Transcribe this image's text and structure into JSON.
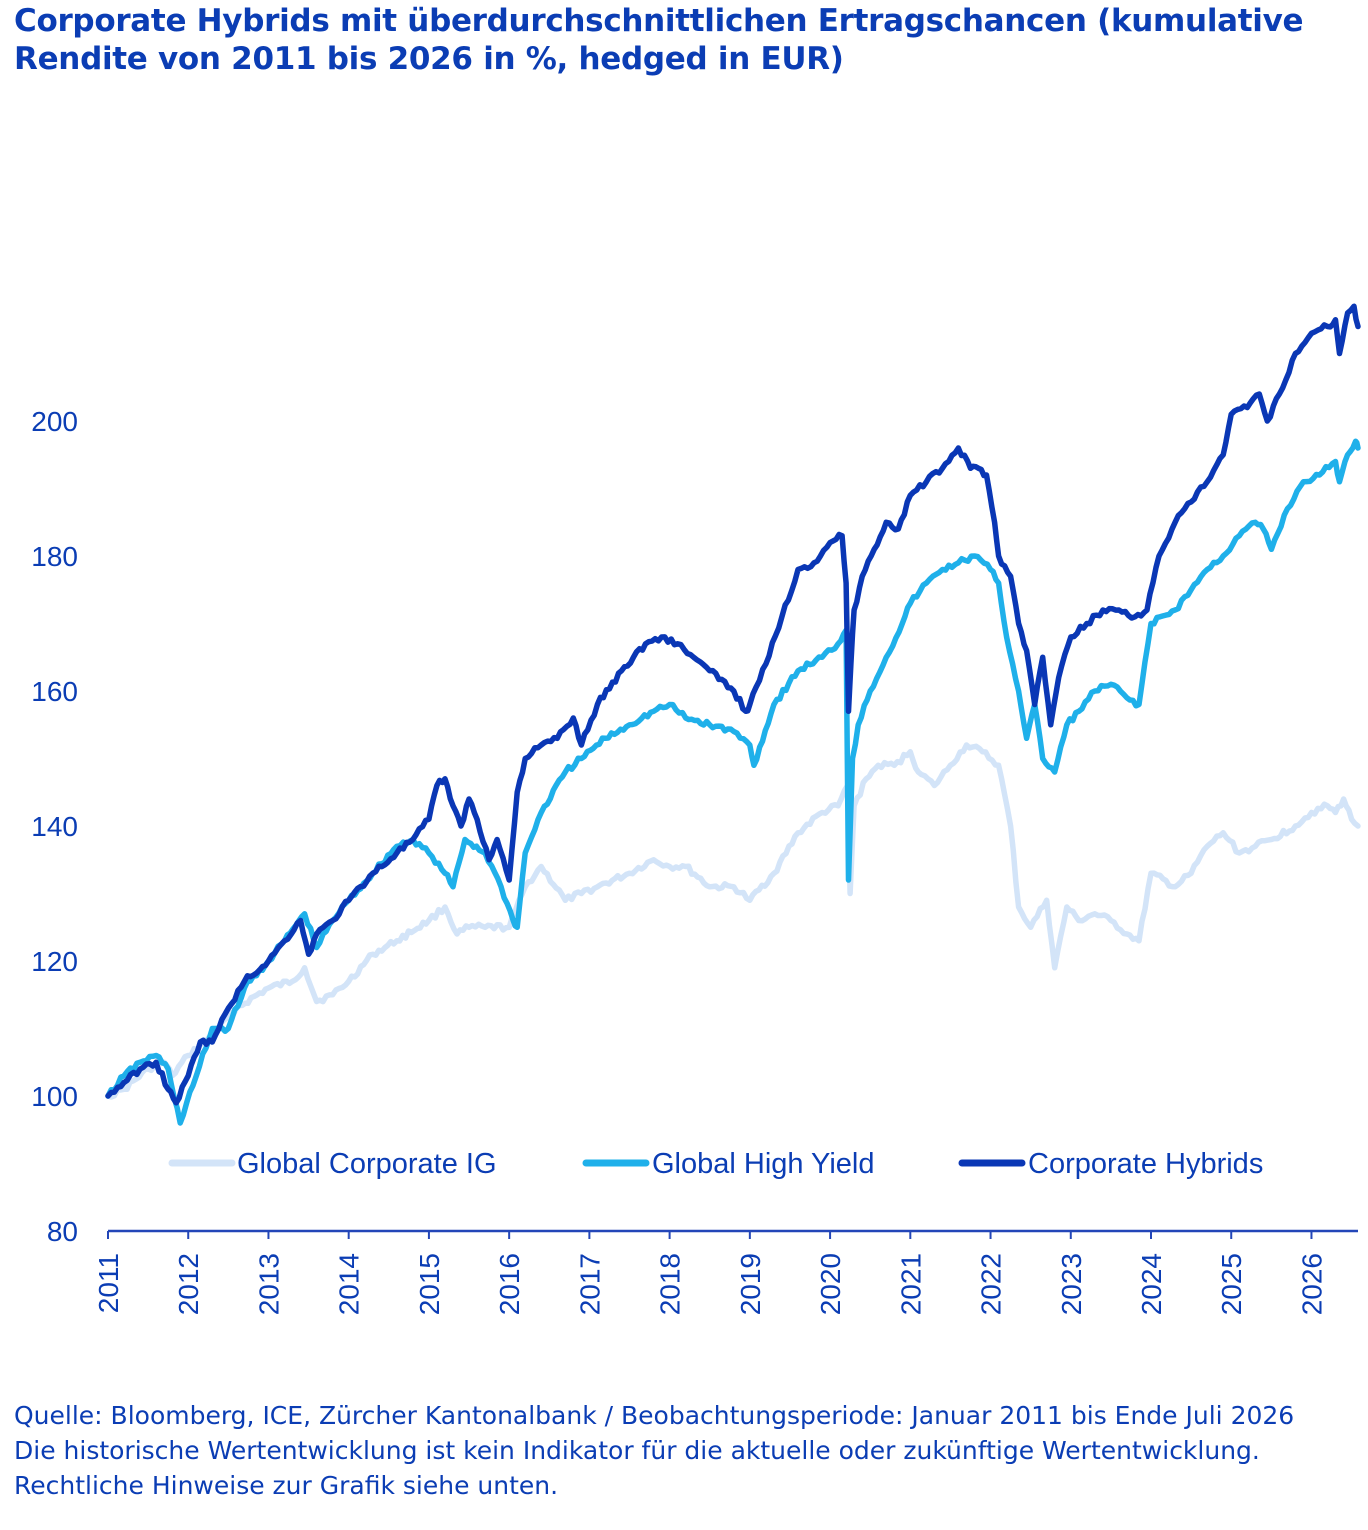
{
  "title": "Corporate Hybrids mit überdurchschnittlichen Ertragschancen (kumulative Rendite von 2011 bis 2026 in %, hedged in EUR)",
  "source": "Quelle: Bloomberg, ICE, Zürcher Kantonalbank / Beobachtungsperiode: Januar 2011 bis Ende Juli 2026 Die historische Wertentwicklung ist kein Indikator für die aktuelle oder zukünftige Wertentwicklung. Rechtliche Hinweise zur Grafik siehe unten.",
  "colors": {
    "text": "#0b3db4",
    "axis": "#2346b8"
  },
  "chart_data": {
    "type": "line",
    "title": "Corporate Hybrids mit überdurchschnittlichen Ertragschancen (kumulative Rendite von 2011 bis 2026 in %, hedged in EUR)",
    "xlabel": "",
    "ylabel": "",
    "xlim": [
      2011.0,
      2026.58
    ],
    "ylim": [
      80,
      220
    ],
    "y_ticks": [
      80,
      100,
      120,
      140,
      160,
      180,
      200
    ],
    "x_ticks": [
      "2011",
      "2012",
      "2013",
      "2014",
      "2015",
      "2016",
      "2017",
      "2018",
      "2019",
      "2020",
      "2021",
      "2022",
      "2023",
      "2024",
      "2025",
      "2026"
    ],
    "grid": false,
    "legend_position": "bottom",
    "series": [
      {
        "name": "Global Corporate IG",
        "color": "#d3e4f8",
        "x": [
          2011.0,
          2011.2,
          2011.5,
          2011.7,
          2011.8,
          2012.0,
          2012.3,
          2012.6,
          2013.0,
          2013.3,
          2013.45,
          2013.6,
          2013.8,
          2014.0,
          2014.3,
          2014.6,
          2015.0,
          2015.2,
          2015.35,
          2015.5,
          2015.7,
          2016.0,
          2016.2,
          2016.4,
          2016.7,
          2016.9,
          2017.1,
          2017.5,
          2017.8,
          2018.0,
          2018.2,
          2018.5,
          2018.8,
          2019.0,
          2019.3,
          2019.6,
          2019.9,
          2020.1,
          2020.22,
          2020.25,
          2020.3,
          2020.45,
          2020.6,
          2020.8,
          2021.0,
          2021.1,
          2021.3,
          2021.5,
          2021.7,
          2021.9,
          2022.1,
          2022.25,
          2022.35,
          2022.5,
          2022.7,
          2022.8,
          2022.95,
          2023.1,
          2023.3,
          2023.5,
          2023.7,
          2023.85,
          2024.0,
          2024.3,
          2024.5,
          2024.7,
          2024.9,
          2025.1,
          2025.3,
          2025.5,
          2025.8,
          2026.0,
          2026.2,
          2026.3,
          2026.4,
          2026.5,
          2026.58
        ],
        "values": [
          100,
          101,
          104,
          105,
          103,
          106,
          109,
          113,
          116,
          117,
          119,
          114,
          115,
          117,
          121,
          123,
          126,
          128,
          124,
          125,
          125,
          125,
          131,
          134,
          129,
          130,
          131,
          133,
          135,
          134,
          134,
          131,
          131,
          129,
          133,
          139,
          142,
          143,
          146,
          130,
          143,
          147,
          149,
          149,
          151,
          148,
          146,
          149,
          152,
          151,
          149,
          140,
          128,
          125,
          129,
          119,
          128,
          126,
          127,
          126,
          124,
          123,
          133,
          131,
          133,
          137,
          139,
          136,
          137,
          138,
          140,
          142,
          143,
          142,
          144,
          141,
          140
        ]
      },
      {
        "name": "Global High Yield",
        "color": "#1fb0ea",
        "x": [
          2011.0,
          2011.2,
          2011.4,
          2011.6,
          2011.75,
          2011.9,
          2012.1,
          2012.3,
          2012.5,
          2012.7,
          2013.0,
          2013.2,
          2013.45,
          2013.6,
          2013.8,
          2014.0,
          2014.3,
          2014.6,
          2014.8,
          2015.0,
          2015.2,
          2015.3,
          2015.45,
          2015.7,
          2015.9,
          2016.05,
          2016.1,
          2016.2,
          2016.4,
          2016.7,
          2016.9,
          2017.2,
          2017.5,
          2017.8,
          2018.0,
          2018.2,
          2018.5,
          2018.8,
          2019.0,
          2019.05,
          2019.3,
          2019.6,
          2019.9,
          2020.1,
          2020.2,
          2020.23,
          2020.28,
          2020.35,
          2020.5,
          2020.7,
          2020.9,
          2021.0,
          2021.2,
          2021.4,
          2021.6,
          2021.8,
          2022.0,
          2022.1,
          2022.2,
          2022.35,
          2022.45,
          2022.55,
          2022.65,
          2022.8,
          2022.95,
          2023.1,
          2023.3,
          2023.5,
          2023.7,
          2023.85,
          2024.0,
          2024.3,
          2024.5,
          2024.7,
          2024.9,
          2025.1,
          2025.3,
          2025.4,
          2025.5,
          2025.7,
          2025.9,
          2026.1,
          2026.3,
          2026.35,
          2026.45,
          2026.55,
          2026.58
        ],
        "values": [
          100,
          103,
          105,
          106,
          104,
          96,
          103,
          110,
          110,
          116,
          120,
          123,
          127,
          122,
          126,
          129,
          133,
          137,
          138,
          136,
          133,
          131,
          138,
          136,
          131,
          126,
          125,
          136,
          142,
          148,
          150,
          153,
          155,
          157,
          158,
          156,
          155,
          154,
          152,
          149,
          158,
          163,
          165,
          167,
          169,
          132,
          150,
          155,
          160,
          165,
          170,
          173,
          176,
          178,
          179,
          180,
          178,
          176,
          168,
          160,
          153,
          158,
          150,
          148,
          155,
          157,
          160,
          161,
          159,
          158,
          170,
          172,
          175,
          178,
          180,
          183,
          185,
          184,
          181,
          187,
          191,
          192,
          194,
          191,
          195,
          197,
          196
        ]
      },
      {
        "name": "Corporate Hybrids",
        "color": "#0a37b5",
        "x": [
          2011.0,
          2011.2,
          2011.4,
          2011.6,
          2011.75,
          2011.85,
          2012.0,
          2012.15,
          2012.3,
          2012.5,
          2012.7,
          2013.0,
          2013.2,
          2013.4,
          2013.5,
          2013.6,
          2013.8,
          2014.0,
          2014.3,
          2014.6,
          2014.8,
          2015.0,
          2015.1,
          2015.2,
          2015.3,
          2015.4,
          2015.5,
          2015.6,
          2015.75,
          2015.85,
          2016.0,
          2016.1,
          2016.2,
          2016.4,
          2016.6,
          2016.8,
          2016.9,
          2017.1,
          2017.4,
          2017.7,
          2017.9,
          2018.1,
          2018.3,
          2018.5,
          2018.8,
          2018.95,
          2019.0,
          2019.2,
          2019.4,
          2019.6,
          2019.8,
          2020.0,
          2020.15,
          2020.2,
          2020.23,
          2020.26,
          2020.3,
          2020.4,
          2020.55,
          2020.7,
          2020.85,
          2021.0,
          2021.2,
          2021.4,
          2021.6,
          2021.75,
          2021.85,
          2021.95,
          2022.05,
          2022.1,
          2022.25,
          2022.35,
          2022.45,
          2022.55,
          2022.65,
          2022.75,
          2022.85,
          2023.0,
          2023.2,
          2023.4,
          2023.6,
          2023.8,
          2023.95,
          2024.1,
          2024.3,
          2024.5,
          2024.7,
          2024.9,
          2025.0,
          2025.2,
          2025.35,
          2025.45,
          2025.6,
          2025.8,
          2026.0,
          2026.2,
          2026.3,
          2026.35,
          2026.45,
          2026.53,
          2026.58
        ],
        "values": [
          100,
          102,
          104,
          105,
          101,
          99,
          103,
          108,
          108,
          113,
          117,
          120,
          123,
          126,
          121,
          124,
          126,
          129,
          133,
          136,
          138,
          141,
          146,
          147,
          143,
          140,
          144,
          141,
          135,
          138,
          132,
          145,
          150,
          152,
          153,
          156,
          152,
          158,
          163,
          167,
          168,
          167,
          165,
          163,
          160,
          157,
          158,
          164,
          171,
          178,
          179,
          182,
          183,
          176,
          157,
          164,
          172,
          177,
          181,
          185,
          184,
          189,
          191,
          193,
          196,
          193,
          193,
          192,
          185,
          180,
          177,
          170,
          166,
          158,
          165,
          155,
          162,
          168,
          170,
          172,
          172,
          171,
          172,
          180,
          185,
          188,
          191,
          195,
          201,
          202,
          204,
          200,
          204,
          210,
          213,
          214,
          215,
          210,
          216,
          217,
          214
        ]
      }
    ]
  }
}
